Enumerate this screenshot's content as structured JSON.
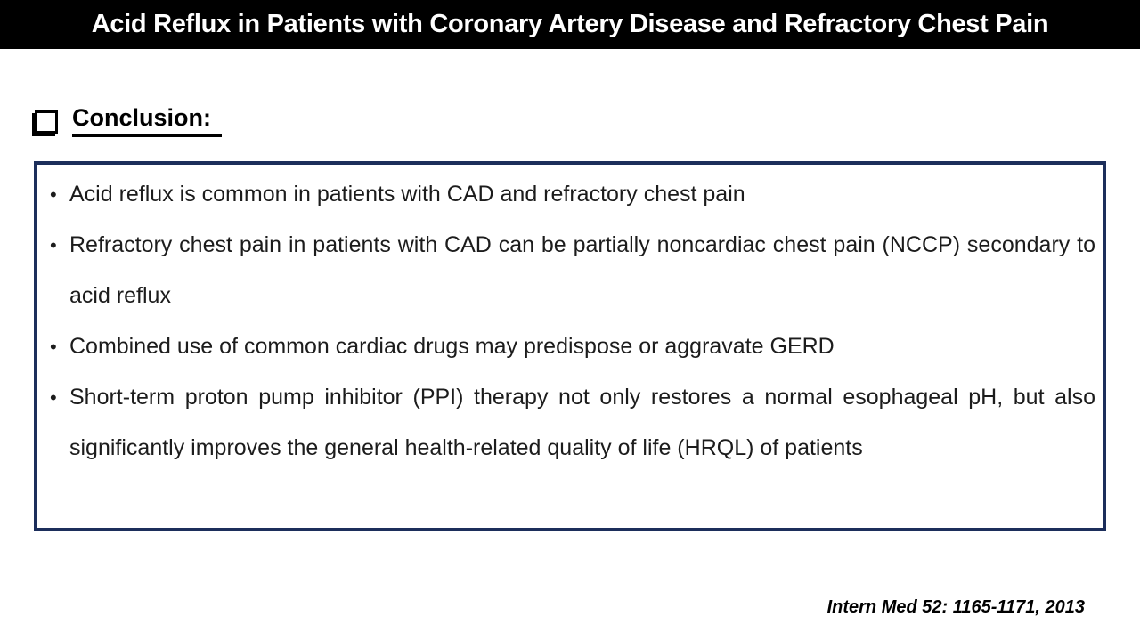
{
  "colors": {
    "title_bar_bg": "#000000",
    "title_text": "#ffffff",
    "body_text": "#1c1c1c",
    "box_border": "#1c2e5b"
  },
  "header": {
    "title": "Acid Reflux in Patients with Coronary Artery Disease and Refractory Chest Pain"
  },
  "section": {
    "heading": "Conclusion:",
    "bullet_icon": "shadowed-square-icon"
  },
  "conclusion_box": {
    "bullets": [
      "Acid reflux is common in patients with CAD and refractory chest pain",
      "Refractory chest pain in patients with CAD can be partially noncardiac chest pain (NCCP) secondary to acid reflux",
      "Combined use of common cardiac drugs may predispose or aggravate GERD",
      "Short-term proton pump inhibitor (PPI) therapy not only restores a normal esophageal pH, but also significantly improves the general health-related quality of life (HRQL) of patients"
    ]
  },
  "footer": {
    "citation": "Intern Med 52: 1165-1171, 2013"
  }
}
